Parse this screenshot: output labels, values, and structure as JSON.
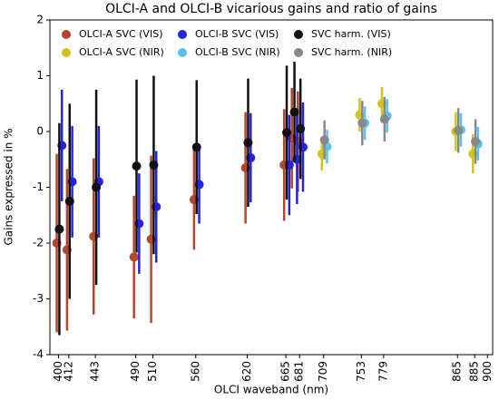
{
  "chart_data": {
    "type": "errorbar",
    "title": "OLCI-A and OLCI-B vicarious gains and ratio of gains",
    "xlabel": "OLCI waveband (nm)",
    "ylabel": "Gains expressed in %",
    "xlim": [
      390,
      906
    ],
    "ylim": [
      -4,
      2
    ],
    "xticks": [
      400,
      412,
      443,
      490,
      510,
      560,
      620,
      665,
      681,
      709,
      753,
      779,
      865,
      885,
      900
    ],
    "yticks": [
      -4,
      -3,
      -2,
      -1,
      0,
      1,
      2
    ],
    "legend": "upper left",
    "series": [
      {
        "name": "OLCI-A SVC (VIS)",
        "color": "#b5452b",
        "x": [
          398,
          410,
          441,
          488,
          508,
          558,
          618,
          663,
          672,
          679
        ],
        "values": [
          -2.0,
          -2.12,
          -1.88,
          -2.25,
          -1.93,
          -1.22,
          -0.65,
          -0.6,
          -0.12,
          -0.18
        ],
        "errors": [
          1.6,
          1.45,
          1.4,
          1.1,
          1.5,
          0.9,
          1.0,
          1.0,
          0.9,
          0.9
        ]
      },
      {
        "name": "OLCI-A SVC (NIR)",
        "color": "#d4c31c",
        "x": [
          707,
          751,
          777,
          863,
          883
        ],
        "values": [
          -0.4,
          0.3,
          0.5,
          0.0,
          -0.4
        ],
        "errors": [
          0.3,
          0.3,
          0.3,
          0.35,
          0.35
        ]
      },
      {
        "name": "OLCI-B SVC (VIS)",
        "color": "#2424dc",
        "x": [
          404,
          416,
          447,
          494,
          514,
          564,
          624,
          669,
          678,
          685
        ],
        "values": [
          -0.25,
          -0.9,
          -0.9,
          -1.65,
          -1.35,
          -0.95,
          -0.47,
          -0.6,
          -0.5,
          -0.28
        ],
        "errors": [
          1.0,
          1.0,
          1.0,
          0.9,
          1.0,
          0.7,
          0.8,
          0.9,
          0.8,
          0.8
        ]
      },
      {
        "name": "OLCI-B SVC (NIR)",
        "color": "#5cc1ec",
        "x": [
          713,
          757,
          783,
          869,
          889
        ],
        "values": [
          -0.27,
          0.15,
          0.28,
          0.03,
          -0.22
        ],
        "errors": [
          0.3,
          0.3,
          0.3,
          0.3,
          0.3
        ]
      },
      {
        "name": "SVC harm. (VIS)",
        "color": "#111111",
        "x": [
          401,
          413,
          444,
          491,
          511,
          561,
          621,
          666,
          675,
          682
        ],
        "values": [
          -1.75,
          -1.25,
          -1.0,
          -0.62,
          -0.6,
          -0.28,
          -0.2,
          -0.02,
          0.35,
          0.05
        ],
        "errors": [
          1.9,
          1.75,
          1.75,
          1.55,
          1.6,
          1.2,
          1.15,
          1.2,
          0.9,
          0.9
        ]
      },
      {
        "name": "SVC harm. (NIR)",
        "color": "#888888",
        "x": [
          710,
          754,
          780,
          866,
          886
        ],
        "values": [
          -0.15,
          0.15,
          0.22,
          0.02,
          -0.18
        ],
        "errors": [
          0.35,
          0.4,
          0.4,
          0.4,
          0.4
        ]
      }
    ]
  }
}
